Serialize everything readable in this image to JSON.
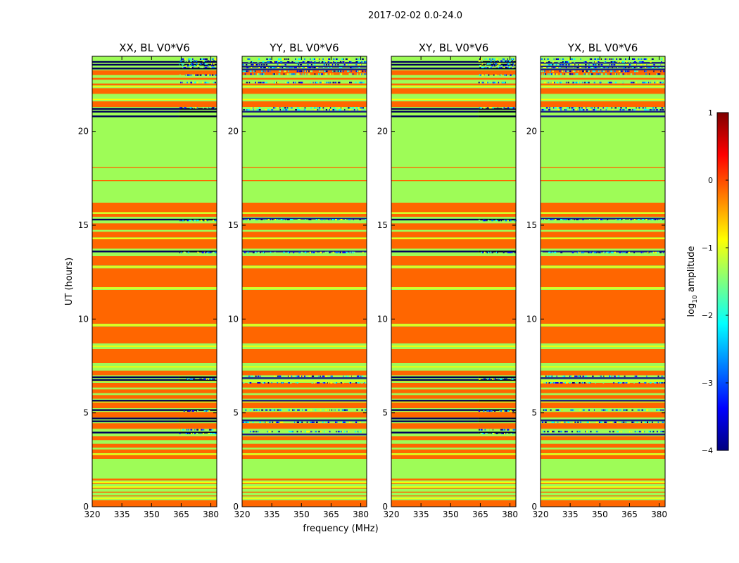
{
  "figure": {
    "suptitle": "2017-02-02 0.0-24.0"
  },
  "chart_data": {
    "type": "heatmap",
    "ylabel": "UT (hours)",
    "xlabel": "frequency (MHz)",
    "xlim": [
      320,
      383
    ],
    "ylim": [
      0,
      24
    ],
    "xticks": [
      320,
      335,
      350,
      365,
      380
    ],
    "yticks": [
      0,
      5,
      10,
      15,
      20
    ],
    "split_freq": 364,
    "colorbar": {
      "label_main": "log",
      "label_sub": "10",
      "label_tail": " amplitude",
      "range": [
        -4,
        1
      ],
      "ticks": [
        1,
        0,
        -1,
        -2,
        -3,
        -4
      ],
      "tick_labels": [
        "1",
        "0",
        "−1",
        "−2",
        "−3",
        "−4"
      ],
      "colors": [
        "#00007f",
        "#0000ff",
        "#007fff",
        "#00ffff",
        "#7fff7f",
        "#ffff00",
        "#ff7f00",
        "#ff0000",
        "#7f0000"
      ]
    },
    "base_color": "#9efc57",
    "bands": [
      {
        "from": 0.0,
        "to": 0.35,
        "color": "#ff6600"
      },
      {
        "from": 0.55,
        "to": 0.6,
        "color": "#ff6600"
      },
      {
        "from": 0.75,
        "to": 0.8,
        "color": "#ff6600"
      },
      {
        "from": 0.95,
        "to": 1.0,
        "color": "#ff6600"
      },
      {
        "from": 1.2,
        "to": 1.25,
        "color": "#ff6600"
      },
      {
        "from": 1.4,
        "to": 1.5,
        "color": "#ff6600"
      },
      {
        "from": 2.55,
        "to": 2.75,
        "color": "#ff6600"
      },
      {
        "from": 2.85,
        "to": 3.05,
        "color": "#ff6600"
      },
      {
        "from": 3.15,
        "to": 3.35,
        "color": "#ff6600"
      },
      {
        "from": 3.55,
        "to": 3.75,
        "color": "#ff6600"
      },
      {
        "from": 4.15,
        "to": 4.45,
        "color": "#ff6600"
      },
      {
        "from": 4.75,
        "to": 5.05,
        "color": "#ff6600"
      },
      {
        "from": 5.25,
        "to": 5.55,
        "color": "#ff6600"
      },
      {
        "from": 5.75,
        "to": 5.95,
        "color": "#ff6600"
      },
      {
        "from": 6.05,
        "to": 6.25,
        "color": "#ff6600"
      },
      {
        "from": 6.35,
        "to": 6.6,
        "color": "#ff6600"
      },
      {
        "from": 7.0,
        "to": 7.25,
        "color": "#ff6600"
      },
      {
        "from": 7.65,
        "to": 8.4,
        "color": "#ff6600"
      },
      {
        "from": 8.7,
        "to": 9.6,
        "color": "#ff6600"
      },
      {
        "from": 9.75,
        "to": 11.55,
        "color": "#ff6600"
      },
      {
        "from": 11.7,
        "to": 12.7,
        "color": "#ff6600"
      },
      {
        "from": 12.85,
        "to": 13.35,
        "color": "#ff6600"
      },
      {
        "from": 13.75,
        "to": 14.25,
        "color": "#ff6600"
      },
      {
        "from": 14.35,
        "to": 14.65,
        "color": "#ff6600"
      },
      {
        "from": 14.75,
        "to": 15.1,
        "color": "#ff6600"
      },
      {
        "from": 15.45,
        "to": 15.6,
        "color": "#ff6600"
      },
      {
        "from": 15.7,
        "to": 16.2,
        "color": "#ff6600"
      },
      {
        "from": 21.3,
        "to": 21.6,
        "color": "#ff6600"
      },
      {
        "from": 22.0,
        "to": 22.3,
        "color": "#ff6600"
      },
      {
        "from": 22.45,
        "to": 22.55,
        "color": "#ff6600"
      },
      {
        "from": 22.75,
        "to": 22.85,
        "color": "#ff6600"
      },
      {
        "from": 23.0,
        "to": 23.25,
        "color": "#ff6600"
      },
      {
        "from": 17.35,
        "to": 17.4,
        "color": "#ff6600"
      },
      {
        "from": 18.05,
        "to": 18.1,
        "color": "#ff6600"
      }
    ],
    "lines": [
      {
        "y": 0.45,
        "color": "#ffff00"
      },
      {
        "y": 1.05,
        "color": "#ffff00"
      },
      {
        "y": 1.3,
        "color": "#ffff00"
      },
      {
        "y": 2.8,
        "color": "#ffff00"
      },
      {
        "y": 5.6,
        "color": "#ffff00"
      },
      {
        "y": 6.7,
        "color": "#ffff00"
      },
      {
        "y": 7.45,
        "color": "#ffff00"
      },
      {
        "y": 8.55,
        "color": "#ffff00"
      },
      {
        "y": 9.68,
        "color": "#ffff00"
      },
      {
        "y": 11.65,
        "color": "#ffff00"
      },
      {
        "y": 12.78,
        "color": "#ffff00"
      },
      {
        "y": 14.3,
        "color": "#ffff00"
      },
      {
        "y": 15.65,
        "color": "#ffff00"
      },
      {
        "y": 21.7,
        "color": "#ffff00"
      },
      {
        "y": 22.4,
        "color": "#ffff00"
      }
    ],
    "panels": [
      {
        "title": "XX, BL V0*V6",
        "noisy_left": false,
        "dark": [
          3.95,
          4.55,
          4.7,
          5.15,
          5.65,
          6.75,
          6.9,
          13.6,
          15.3,
          20.8,
          21.05,
          21.2,
          23.35,
          23.55,
          23.7
        ],
        "speckle": [
          3.9,
          4.1,
          5.1,
          6.8,
          13.55,
          15.25,
          21.25,
          22.6,
          23.0,
          23.4,
          23.5,
          23.6,
          23.75,
          23.85
        ]
      },
      {
        "title": "YY, BL V0*V6",
        "noisy_left": true,
        "dark": [
          3.85,
          4.6,
          5.65,
          6.85,
          13.6,
          15.35,
          20.8,
          21.05,
          23.3,
          23.45,
          23.65
        ],
        "speckle": [
          4.0,
          4.5,
          5.15,
          6.6,
          6.95,
          13.55,
          15.3,
          21.15,
          21.25,
          22.6,
          23.05,
          23.2,
          23.4,
          23.55,
          23.7,
          23.85
        ]
      },
      {
        "title": "XY, BL V0*V6",
        "noisy_left": false,
        "dark": [
          3.95,
          4.55,
          4.7,
          5.15,
          5.65,
          6.75,
          6.9,
          13.6,
          15.3,
          20.8,
          21.05,
          21.2,
          23.35,
          23.55,
          23.7
        ],
        "speckle": [
          3.9,
          4.1,
          5.1,
          6.8,
          13.55,
          15.25,
          21.25,
          22.6,
          23.0,
          23.4,
          23.5,
          23.6,
          23.75,
          23.85
        ]
      },
      {
        "title": "YX, BL V0*V6",
        "noisy_left": true,
        "dark": [
          3.85,
          4.6,
          5.65,
          6.85,
          13.6,
          15.35,
          20.8,
          21.05,
          23.3,
          23.45,
          23.65
        ],
        "speckle": [
          4.0,
          4.5,
          5.15,
          6.6,
          6.95,
          13.55,
          15.3,
          21.15,
          21.25,
          22.6,
          23.05,
          23.2,
          23.4,
          23.55,
          23.7,
          23.85
        ]
      }
    ]
  }
}
